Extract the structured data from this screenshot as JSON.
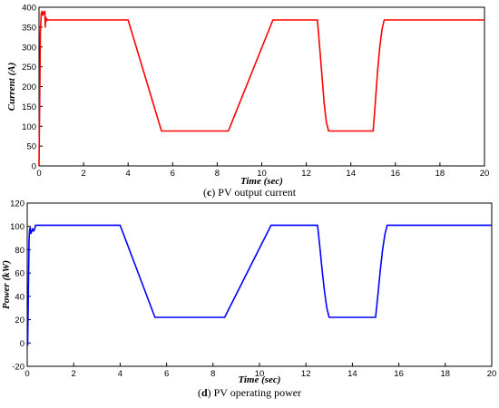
{
  "chart_data": [
    {
      "type": "line",
      "caption_letter": "c",
      "caption_text": "PV output current",
      "xlabel": "Time (sec)",
      "ylabel": "Current (A)",
      "xlim": [
        0,
        20
      ],
      "ylim": [
        0,
        400
      ],
      "xticks": [
        0,
        2,
        4,
        6,
        8,
        10,
        12,
        14,
        16,
        18,
        20
      ],
      "yticks": [
        0,
        50,
        100,
        150,
        200,
        250,
        300,
        350,
        400
      ],
      "grid": false,
      "color": "#ff0000",
      "series": [
        {
          "x": [
            0,
            0.03,
            0.06,
            0.1,
            0.14,
            0.17,
            0.2,
            0.23,
            0.26,
            0.28,
            0.3,
            0.32,
            0.35,
            0.4,
            4.0,
            5.5,
            8.5,
            10.5,
            12.5,
            12.6,
            12.7,
            12.8,
            12.9,
            13.0,
            15.0,
            15.1,
            15.2,
            15.3,
            15.4,
            15.5,
            20.0
          ],
          "y": [
            0,
            150,
            340,
            385,
            390,
            380,
            388,
            383,
            390,
            350,
            375,
            365,
            370,
            368,
            368,
            88,
            88,
            368,
            368,
            300,
            230,
            160,
            110,
            88,
            88,
            160,
            240,
            300,
            345,
            368,
            368
          ]
        }
      ]
    },
    {
      "type": "line",
      "caption_letter": "d",
      "caption_text": "PV operating power",
      "xlabel": "Time (sec)",
      "ylabel": "Power (kW)",
      "xlim": [
        0,
        20
      ],
      "ylim": [
        -20,
        120
      ],
      "xticks": [
        0,
        2,
        4,
        6,
        8,
        10,
        12,
        14,
        16,
        18,
        20
      ],
      "yticks": [
        -20,
        0,
        20,
        40,
        60,
        80,
        100,
        120
      ],
      "grid": false,
      "color": "#0000ff",
      "series": [
        {
          "x": [
            0,
            0.02,
            0.05,
            0.08,
            0.1,
            0.13,
            0.16,
            0.2,
            0.24,
            0.28,
            0.3,
            0.33,
            0.36,
            0.4,
            4.0,
            5.5,
            8.5,
            10.5,
            12.5,
            12.6,
            12.7,
            12.8,
            12.9,
            13.0,
            15.0,
            15.1,
            15.2,
            15.3,
            15.4,
            15.5,
            20.0
          ],
          "y": [
            0,
            -2,
            45,
            88,
            97,
            99,
            94,
            96,
            98,
            96,
            97,
            98,
            101,
            101,
            101,
            22,
            22,
            101,
            101,
            82,
            62,
            44,
            30,
            22,
            22,
            42,
            62,
            80,
            93,
            101,
            101
          ]
        }
      ]
    }
  ]
}
